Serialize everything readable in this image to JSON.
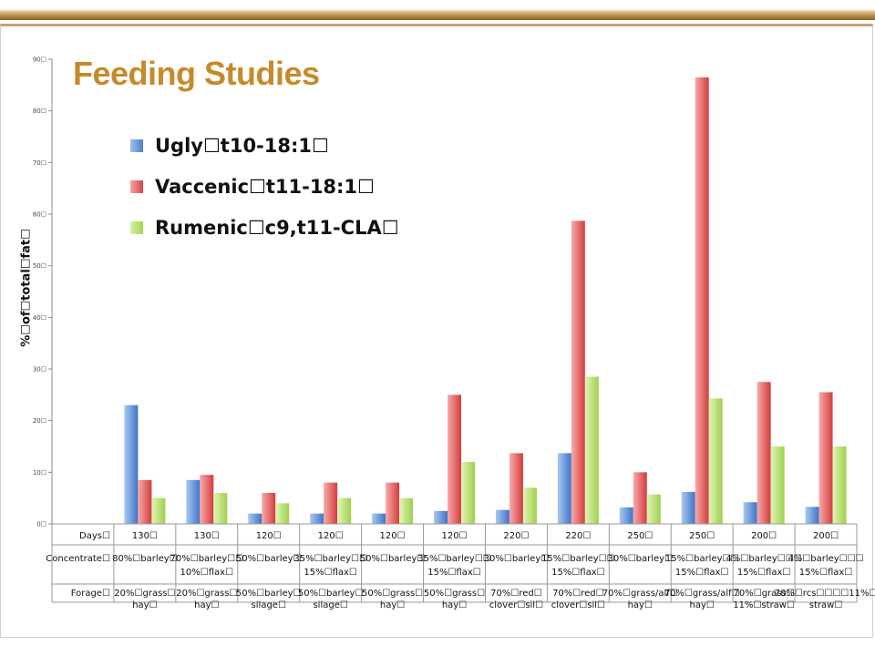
{
  "slide": {
    "title": "Feeding Studies"
  },
  "colors": {
    "accent": "#c78a2b",
    "blue": "#5b8fd6",
    "red": "#e05a5a",
    "green": "#b8e06a"
  },
  "chart_data": {
    "type": "bar",
    "title": "",
    "ylabel": "%☐of☐total☐fat☐",
    "ylim": [
      0,
      90
    ],
    "yticks": [
      "0☐",
      "10☐",
      "20☐",
      "30☐",
      "40☐",
      "50☐",
      "60☐",
      "70☐",
      "80☐",
      "90☐"
    ],
    "legend_position": "top-left",
    "grid": false,
    "series": [
      {
        "name": "Ugly☐t10-18:1☐",
        "values": [
          0,
          23,
          8.5,
          2,
          2,
          2,
          2.5,
          2.7,
          13.7,
          3.2,
          6.2,
          4.2,
          3.3
        ]
      },
      {
        "name": "Vaccenic☐t11-18:1☐",
        "values": [
          0,
          8.5,
          9.5,
          6,
          8,
          8,
          25,
          13.7,
          58.7,
          10,
          86.5,
          27.5,
          25.5
        ]
      },
      {
        "name": "Rumenic☐c9,t11-CLA☐",
        "values": [
          0,
          5,
          6,
          4,
          5,
          5,
          12,
          7,
          28.5,
          5.7,
          24.3,
          15,
          15
        ]
      }
    ],
    "table": {
      "row_headers": [
        "Days☐",
        "Concentrate☐",
        "Forage☐"
      ],
      "columns": [
        {
          "days": "",
          "concentrate": [
            "",
            ""
          ],
          "forage": [
            "",
            ""
          ]
        },
        {
          "days": "130☐",
          "concentrate": [
            "80%☐barley☐",
            ""
          ],
          "forage": [
            "20%☐grass☐",
            "hay☐"
          ]
        },
        {
          "days": "130☐",
          "concentrate": [
            "70%☐barley☐☐",
            "10%☐flax☐"
          ],
          "forage": [
            "20%☐grass☐",
            "hay☐"
          ]
        },
        {
          "days": "120☐",
          "concentrate": [
            "50%☐barley☐",
            ""
          ],
          "forage": [
            "50%☐barley☐",
            "silage☐"
          ]
        },
        {
          "days": "120☐",
          "concentrate": [
            "35%☐barley☐☐",
            "15%☐flax☐"
          ],
          "forage": [
            "50%☐barley☐",
            "silage☐"
          ]
        },
        {
          "days": "120☐",
          "concentrate": [
            "50%☐barley☐",
            ""
          ],
          "forage": [
            "50%☐grass☐",
            "hay☐"
          ]
        },
        {
          "days": "120☐",
          "concentrate": [
            "35%☐barley☐☐",
            "15%☐flax☐"
          ],
          "forage": [
            "50%☐grass☐",
            "hay☐"
          ]
        },
        {
          "days": "220☐",
          "concentrate": [
            "30%☐barley☐",
            ""
          ],
          "forage": [
            "70%☐red☐",
            "clover☐sil☐"
          ]
        },
        {
          "days": "220☐",
          "concentrate": [
            "15%☐barley☐☐",
            "15%☐flax☐"
          ],
          "forage": [
            "70%☐red☐",
            "clover☐sil☐"
          ]
        },
        {
          "days": "250☐",
          "concentrate": [
            "30%☐barley☐",
            ""
          ],
          "forage": [
            "70%☐grass/alf☐",
            "hay☐"
          ]
        },
        {
          "days": "250☐",
          "concentrate": [
            "15%☐barley☐☐",
            "15%☐flax☐"
          ],
          "forage": [
            "70%☐grass/alf☐",
            "hay☐"
          ]
        },
        {
          "days": "200☐",
          "concentrate": [
            "4%☐barley☐☐☐",
            "15%☐flax☐"
          ],
          "forage": [
            "70%☐grass☐",
            "11%☐straw☐"
          ]
        },
        {
          "days": "200☐",
          "concentrate": [
            "4%☐barley☐☐☐",
            "15%☐flax☐"
          ],
          "forage": [
            "70%☐rcs☐☐☐☐11%☐",
            "straw☐"
          ]
        }
      ]
    }
  }
}
